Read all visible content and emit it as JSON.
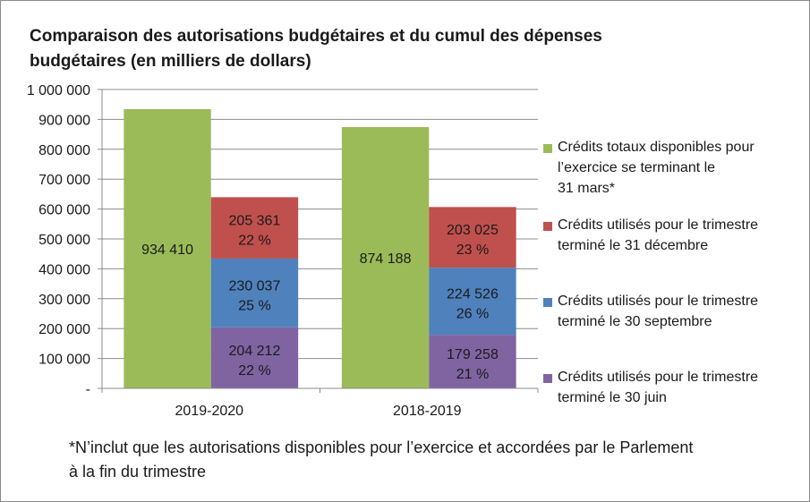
{
  "chart_data": {
    "type": "bar",
    "stacked": true,
    "title_lines": [
      "Comparaison des autorisations budgétaires et du cumul des dépenses",
      "budgétaires (en milliers de dollars)"
    ],
    "categories": [
      "2019-2020",
      "2018-2019"
    ],
    "ylim": [
      0,
      1000000
    ],
    "yticks": [
      0,
      100000,
      200000,
      300000,
      400000,
      500000,
      600000,
      700000,
      800000,
      900000,
      1000000
    ],
    "ytick_labels": [
      "-",
      "100 000",
      "200 000",
      "300 000",
      "400 000",
      "500 000",
      "600 000",
      "700 000",
      "800 000",
      "900 000",
      "1 000 000"
    ],
    "grid": true,
    "series": [
      {
        "name_lines": [
          "Crédits totaux disponibles pour",
          "l’exercice se terminant le",
          "31 mars*"
        ],
        "color": "#9bbb59",
        "group": "total",
        "values": [
          934410,
          874188
        ],
        "labels": [
          "934 410",
          "874 188"
        ],
        "pct_labels": [
          "",
          ""
        ]
      },
      {
        "name_lines": [
          "Crédits utilisés pour le trimestre",
          "terminé le 30 juin"
        ],
        "color": "#8064a2",
        "group": "used",
        "values": [
          204212,
          179258
        ],
        "labels": [
          "204 212",
          "179 258"
        ],
        "pct_labels": [
          "22 %",
          "21 %"
        ]
      },
      {
        "name_lines": [
          "Crédits utilisés pour le trimestre",
          "terminé le 30 septembre"
        ],
        "color": "#4f81bd",
        "group": "used",
        "values": [
          230037,
          224526
        ],
        "labels": [
          "230 037",
          "224 526"
        ],
        "pct_labels": [
          "25 %",
          "26 %"
        ]
      },
      {
        "name_lines": [
          "Crédits utilisés pour le trimestre",
          "terminé le 31 décembre"
        ],
        "color": "#c0504d",
        "group": "used",
        "values": [
          205361,
          203025
        ],
        "labels": [
          "205 361",
          "203 025"
        ],
        "pct_labels": [
          "22 %",
          "23 %"
        ]
      }
    ],
    "legend_order": [
      0,
      3,
      2,
      1
    ],
    "legend_position": "right",
    "footnote_lines": [
      "*N’inclut que les autorisations disponibles pour l’exercice et accordées par le Parlement",
      "à la fin du trimestre"
    ]
  }
}
